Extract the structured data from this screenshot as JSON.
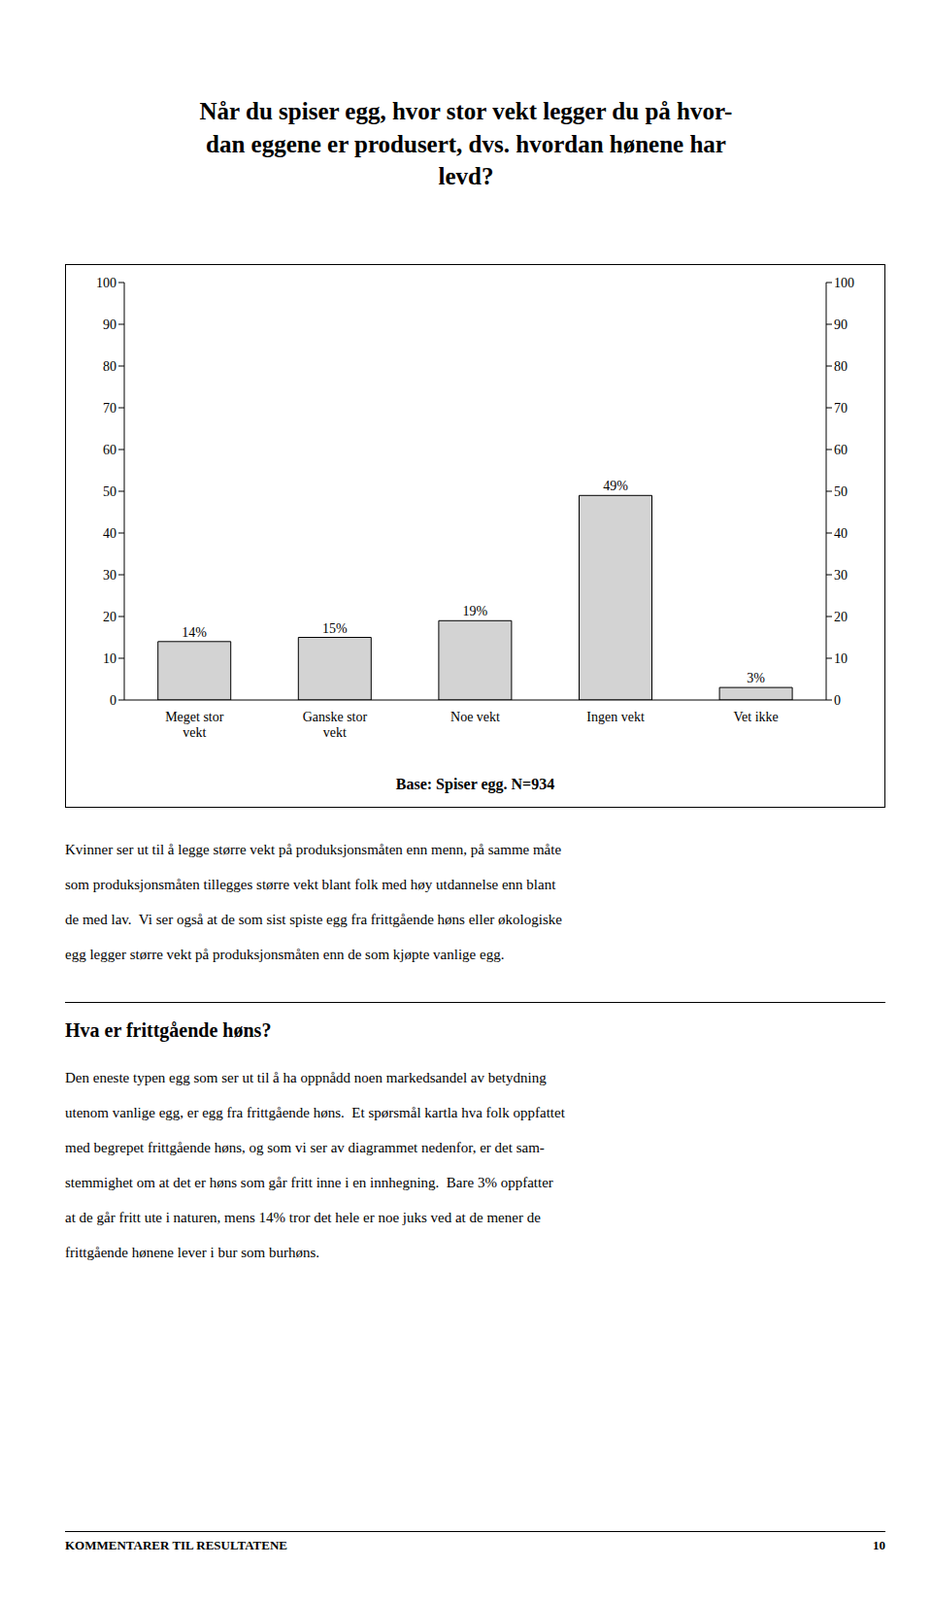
{
  "chart_data": {
    "type": "bar",
    "title": "Når du spiser egg, hvor stor vekt legger du på hvor-\ndan eggene er produsert, dvs. hvordan hønene har\nlevd?",
    "categories": [
      "Meget stor\nvekt",
      "Ganske stor\nvekt",
      "Noe vekt",
      "Ingen vekt",
      "Vet ikke"
    ],
    "values": [
      14,
      15,
      19,
      49,
      3
    ],
    "value_labels": [
      "14%",
      "15%",
      "19%",
      "49%",
      "3%"
    ],
    "data_labels": true,
    "color": "#d3d3d3",
    "ylim": [
      0,
      100
    ],
    "yticks": [
      0,
      10,
      20,
      30,
      40,
      50,
      60,
      70,
      80,
      90,
      100
    ],
    "y2lim": [
      0,
      100
    ],
    "y2ticks": [
      0,
      10,
      20,
      30,
      40,
      50,
      60,
      70,
      80,
      90,
      100
    ],
    "grid": false,
    "annotations": [
      "Base: Spiser egg.  N=934",
      "Kvinner ser ut til å legge større vekt på produksjonsmåten enn menn, på samme måte\nsom produksjonsmåten tillegges større vekt blant folk med høy utdannelse enn blant\nde med lav.  Vi ser også at de som sist spiste egg fra frittgående høns eller økologiske\negg legger større vekt på produksjonsmåten enn de som kjøpte vanlige egg.",
      "Hva er frittgående høns?",
      "Den eneste typen egg som ser ut til å ha oppnådd noen markedsandel av betydning\nutenom vanlige egg, er egg fra frittgående høns.  Et spørsmål kartla hva folk oppfattet\nmed begrepet frittgående høns, og som vi ser av diagrammet nedenfor, er det sam-\nstemmighet om at det er høns som går fritt inne i en innhegning.  Bare 3% oppfatter\nat de går fritt ute i naturen, mens 14% tror det hele er noe juks ved at de mener de\nfrittgående hønene lever i bur som burhøns.",
      "KOMMENTARER TIL RESULTATENE",
      "10"
    ]
  }
}
